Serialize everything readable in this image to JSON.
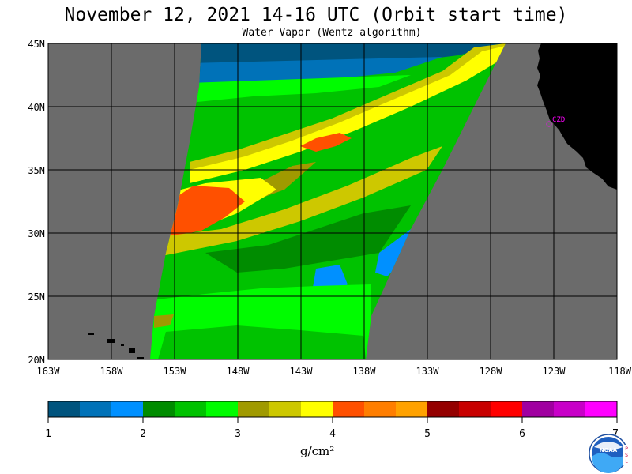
{
  "header": {
    "title": "November 12, 2021  14-16 UTC  (Orbit start time)",
    "subtitle": "Water Vapor (Wentz algorithm)"
  },
  "map": {
    "y_labels": [
      "45N",
      "40N",
      "35N",
      "30N",
      "25N",
      "20N"
    ],
    "x_labels": [
      "163W",
      "158W",
      "153W",
      "148W",
      "143W",
      "138W",
      "133W",
      "128W",
      "123W",
      "118W"
    ],
    "station_label": "CZD",
    "colors": {
      "no_data": "#6b6b6b",
      "land": "#000000",
      "grid": "#000000"
    }
  },
  "colorbar": {
    "ticks": [
      "1",
      "2",
      "3",
      "4",
      "5",
      "6",
      "7"
    ],
    "units": "g/cm²",
    "colors": [
      "#00547e",
      "#0072b8",
      "#0090ff",
      "#008c00",
      "#00c200",
      "#00fc00",
      "#a09a00",
      "#cdc800",
      "#ffff00",
      "#ff5000",
      "#ff7e00",
      "#ffa200",
      "#940000",
      "#c80000",
      "#ff0000",
      "#a000a0",
      "#c800c8",
      "#ff00ff"
    ]
  },
  "logo": {
    "name": "noaa-logo",
    "text": "NOAA"
  }
}
